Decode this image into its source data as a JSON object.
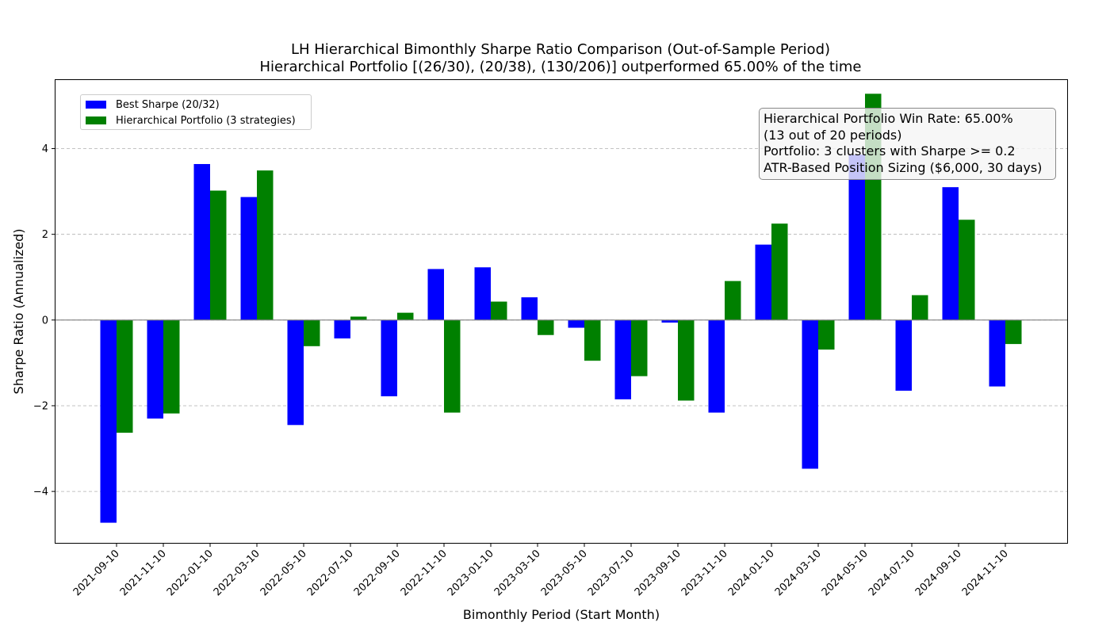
{
  "chart_data": {
    "type": "bar",
    "title": "LH Hierarchical Bimonthly Sharpe Ratio Comparison (Out-of-Sample Period)",
    "subtitle": "Hierarchical Portfolio [(26/30), (20/38), (130/206)] outperformed 65.00% of the time",
    "xlabel": "Bimonthly Period (Start Month)",
    "ylabel": "Sharpe Ratio (Annualized)",
    "ylim": [
      -5.2,
      5.6
    ],
    "yticks": [
      -4,
      -2,
      0,
      2,
      4
    ],
    "ytick_labels": [
      "−4",
      "−2",
      "0",
      "2",
      "4"
    ],
    "grid": "horizontal dashed",
    "legend_position": "top-left",
    "categories": [
      "2021-09-10",
      "2021-11-10",
      "2022-01-10",
      "2022-03-10",
      "2022-05-10",
      "2022-07-10",
      "2022-09-10",
      "2022-11-10",
      "2023-01-10",
      "2023-03-10",
      "2023-05-10",
      "2023-07-10",
      "2023-09-10",
      "2023-11-10",
      "2024-01-10",
      "2024-03-10",
      "2024-05-10",
      "2024-07-10",
      "2024-09-10",
      "2024-11-10"
    ],
    "series": [
      {
        "name": "Best Sharpe (20/32)",
        "color": "#0000ff",
        "values": [
          -4.73,
          -2.3,
          3.64,
          2.87,
          -2.45,
          -0.43,
          -1.78,
          1.19,
          1.23,
          0.53,
          -0.18,
          -1.85,
          -0.06,
          -2.16,
          1.76,
          -3.47,
          3.86,
          -1.65,
          3.1,
          -1.55
        ]
      },
      {
        "name": "Hierarchical Portfolio (3 strategies)",
        "color": "#008000",
        "values": [
          -2.63,
          -2.18,
          3.02,
          3.49,
          -0.61,
          0.08,
          0.17,
          -2.16,
          0.43,
          -0.35,
          -0.95,
          -1.31,
          -1.88,
          0.91,
          2.25,
          -0.69,
          5.28,
          0.58,
          2.34,
          -0.56
        ]
      }
    ],
    "annotation": [
      "Hierarchical Portfolio Win Rate: 65.00%",
      "(13 out of 20 periods)",
      "Portfolio: 3 clusters with Sharpe >= 0.2",
      "ATR-Based Position Sizing ($6,000, 30 days)"
    ]
  }
}
